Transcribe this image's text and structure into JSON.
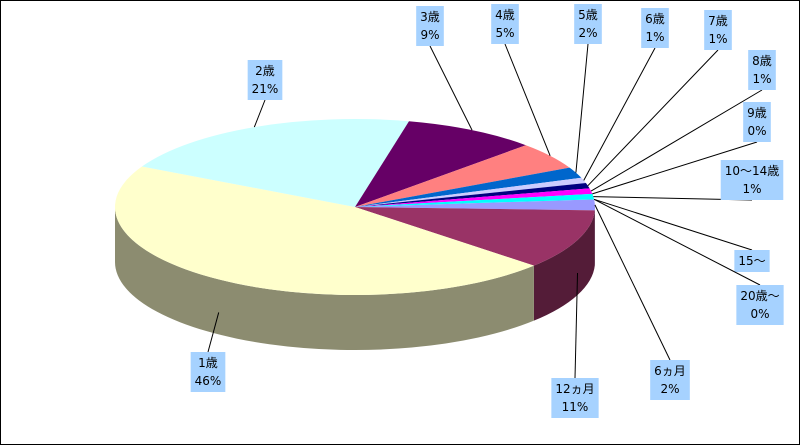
{
  "chart_data": {
    "type": "pie3d",
    "categories": [
      "6ヵ月",
      "12ヵ月",
      "1歳",
      "2歳",
      "3歳",
      "4歳",
      "5歳",
      "6歳",
      "7歳",
      "8歳",
      "9歳",
      "10〜14歳",
      "15〜",
      "20歳〜"
    ],
    "values": [
      2,
      11,
      46,
      21,
      9,
      5,
      2,
      1,
      1,
      1,
      0,
      1,
      0,
      0
    ],
    "value_labels": [
      "2%",
      "11%",
      "46%",
      "21%",
      "9%",
      "5%",
      "2%",
      "1%",
      "1%",
      "1%",
      "0%",
      "1%",
      null,
      "0%"
    ],
    "colors": [
      "#9999ff",
      "#993366",
      "#ffffcc",
      "#ccffff",
      "#660066",
      "#ff8080",
      "#0066cc",
      "#ccccff",
      "#000080",
      "#ff00ff",
      "#ffff00",
      "#00ffff",
      "#800080",
      "#800000"
    ]
  }
}
